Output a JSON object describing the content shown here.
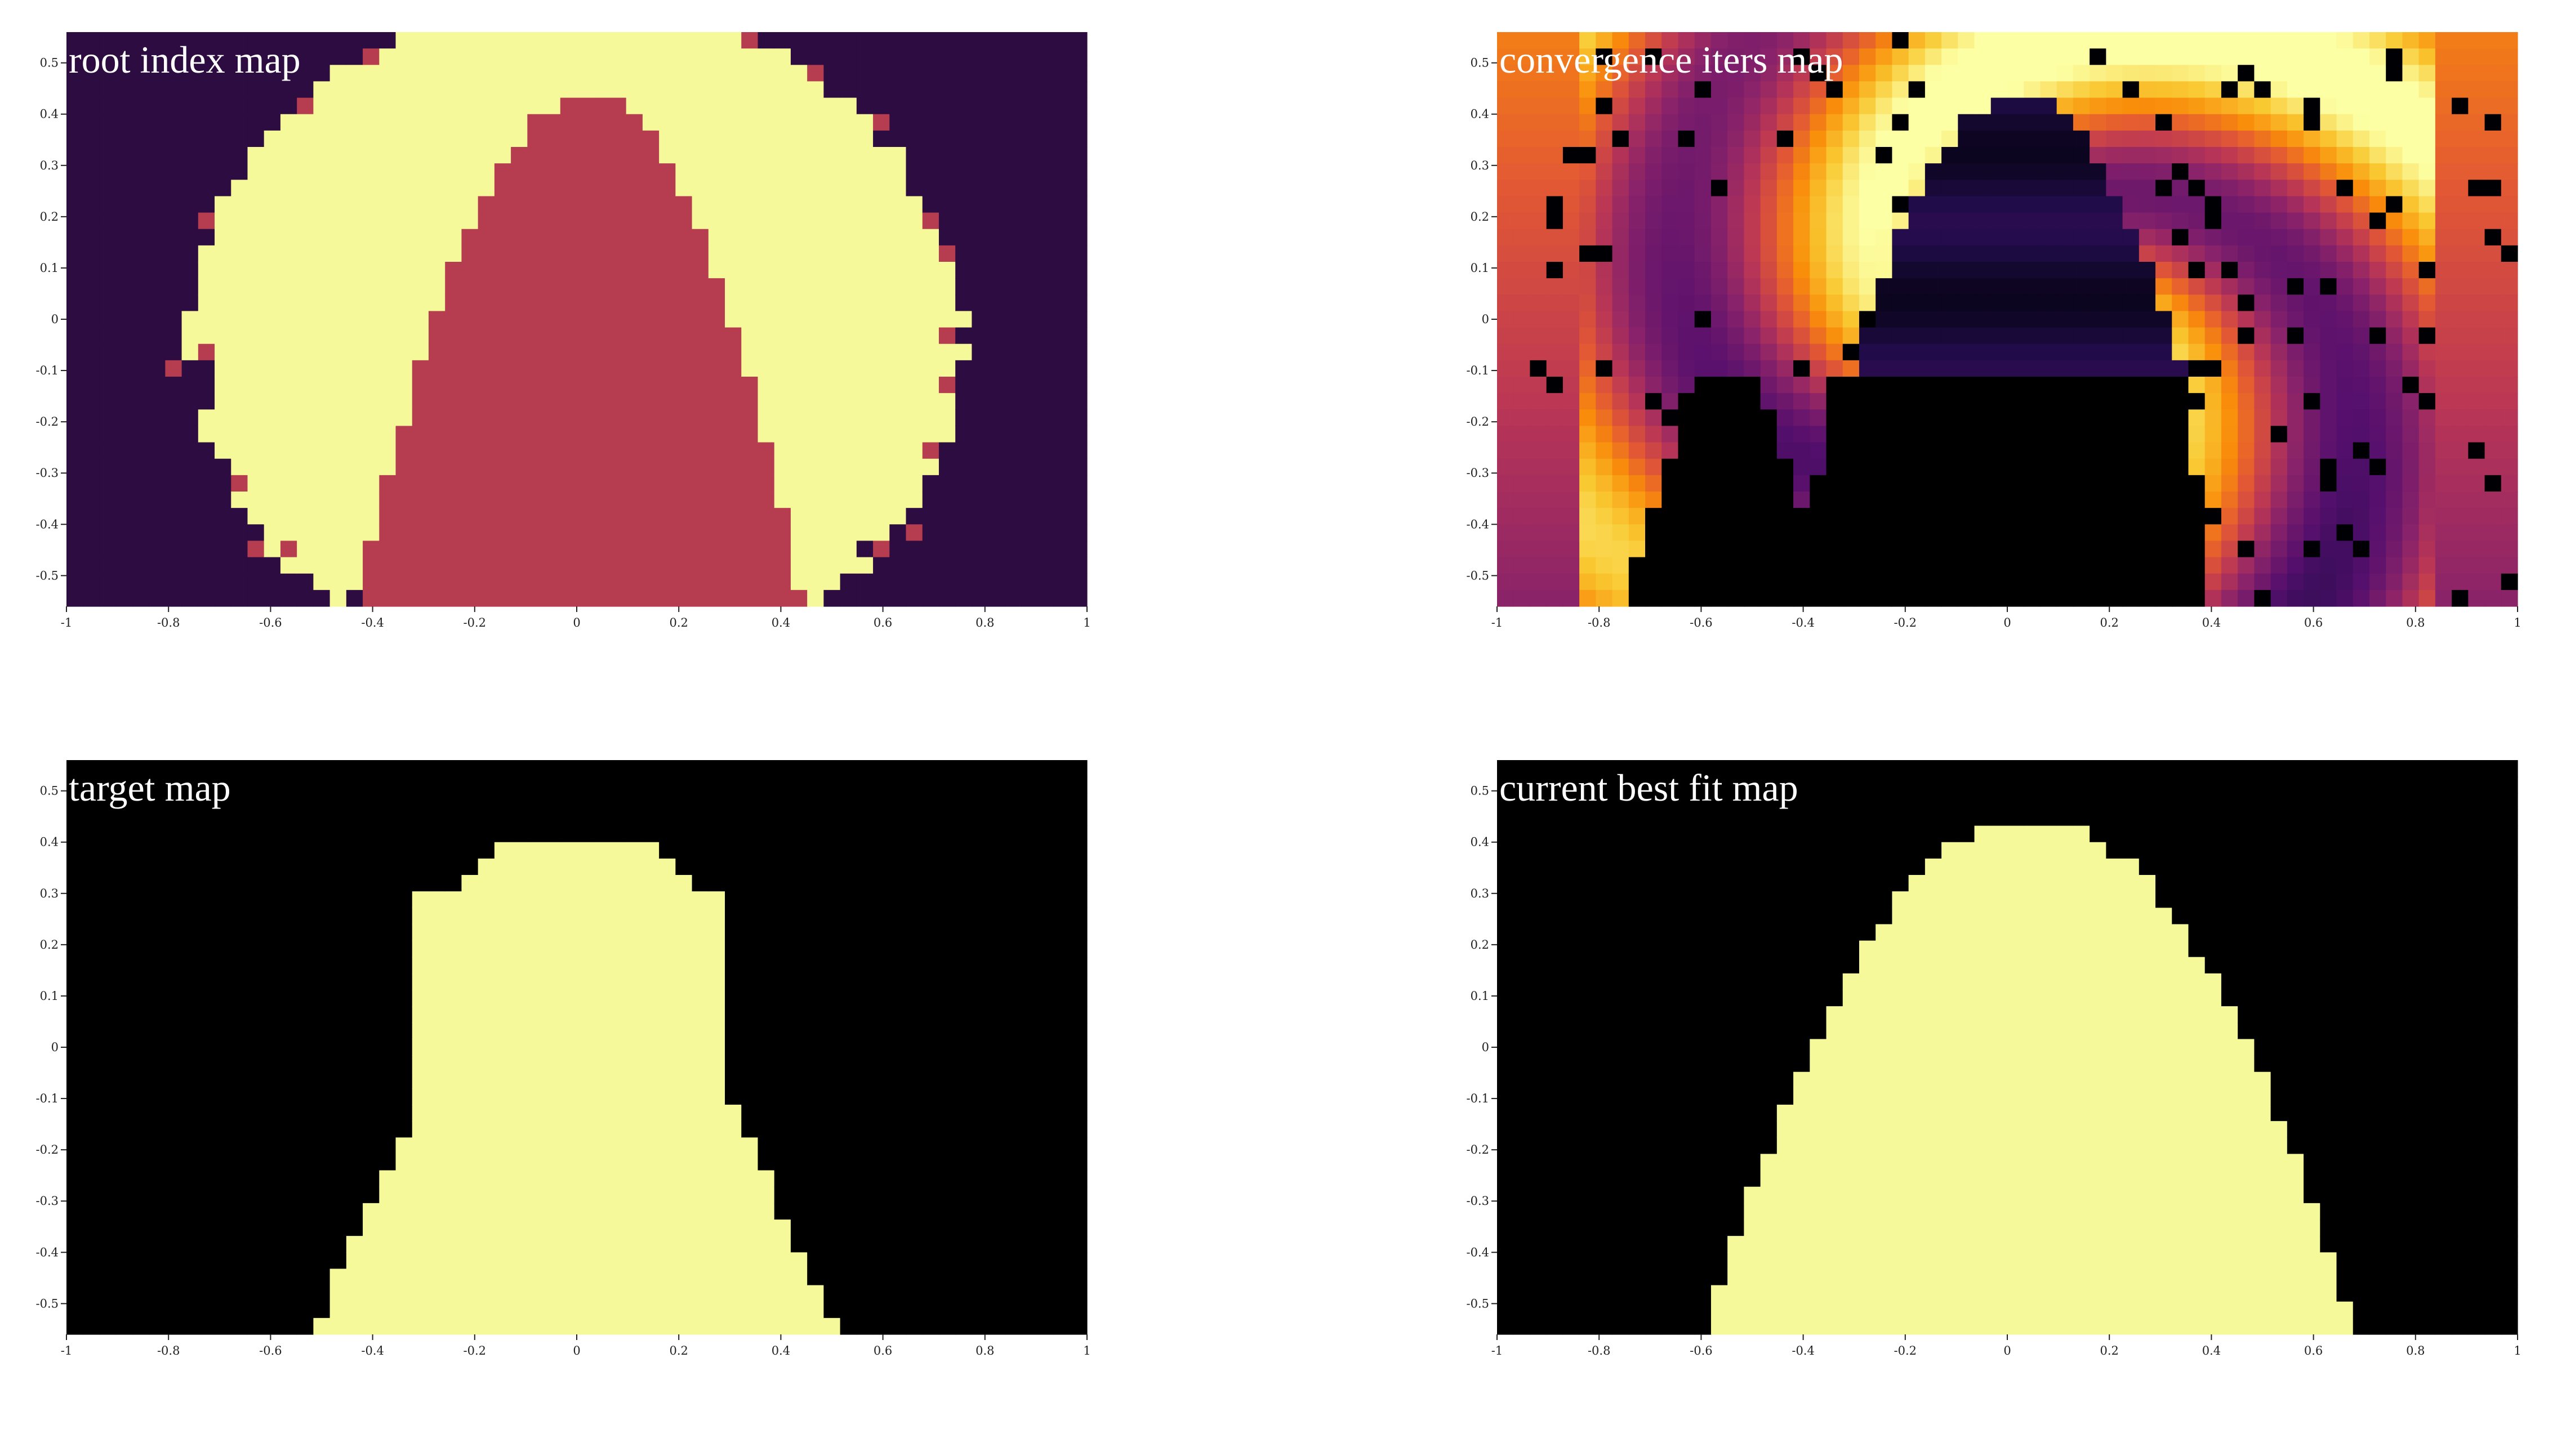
{
  "chart_data": [
    {
      "type": "heatmap",
      "title": "root index map",
      "xlim": [
        -1,
        1
      ],
      "ylim": [
        -0.56,
        0.56
      ],
      "x_ticks": [
        "-1",
        "-0.8",
        "-0.6",
        "-0.4",
        "-0.2",
        "0",
        "0.2",
        "0.4",
        "0.6",
        "0.8",
        "1"
      ],
      "y_ticks": [
        "-0.5",
        "-0.4",
        "-0.3",
        "-0.2",
        "-0.1",
        "0",
        "0.1",
        "0.2",
        "0.3",
        "0.4",
        "0.5"
      ],
      "colormap": "categorical",
      "categories": [
        {
          "value": 0,
          "color": "#2d0c41"
        },
        {
          "value": 1,
          "color": "#f6f99a"
        },
        {
          "value": 2,
          "color": "#b63d50"
        }
      ],
      "regions": [
        {
          "category": 1,
          "description": "outer ring",
          "cx": 0.0,
          "cy": -0.04,
          "rx": 0.76,
          "ry": 0.66
        },
        {
          "category": 2,
          "description": "central parabolic lobe",
          "vertex_y": 0.44,
          "half_width_at_bottom": 0.43,
          "x_center": 0.02
        }
      ]
    },
    {
      "type": "heatmap",
      "title": "convergence iters map",
      "xlim": [
        -1,
        1
      ],
      "ylim": [
        -0.56,
        0.56
      ],
      "x_ticks": [
        "-1",
        "-0.8",
        "-0.6",
        "-0.4",
        "-0.2",
        "0",
        "0.2",
        "0.4",
        "0.6",
        "0.8",
        "1"
      ],
      "y_ticks": [
        "-0.5",
        "-0.4",
        "-0.3",
        "-0.2",
        "-0.1",
        "0",
        "0.1",
        "0.2",
        "0.3",
        "0.4",
        "0.5"
      ],
      "colormap": "inferno",
      "value_range": [
        0,
        1
      ]
    },
    {
      "type": "heatmap",
      "title": "target map",
      "xlim": [
        -1,
        1
      ],
      "ylim": [
        -0.56,
        0.56
      ],
      "x_ticks": [
        "-1",
        "-0.8",
        "-0.6",
        "-0.4",
        "-0.2",
        "0",
        "0.2",
        "0.4",
        "0.6",
        "0.8",
        "1"
      ],
      "y_ticks": [
        "-0.5",
        "-0.4",
        "-0.3",
        "-0.2",
        "-0.1",
        "0",
        "0.1",
        "0.2",
        "0.3",
        "0.4",
        "0.5"
      ],
      "colormap": "binary",
      "colors": {
        "off": "#000000",
        "on": "#f6f99a"
      },
      "shape": "bell-shaped blob centered at x=0, top y=0.41, base from x=-0.52 to x=0.50"
    },
    {
      "type": "heatmap",
      "title": "current best fit map",
      "xlim": [
        -1,
        1
      ],
      "ylim": [
        -0.56,
        0.56
      ],
      "x_ticks": [
        "-1",
        "-0.8",
        "-0.6",
        "-0.4",
        "-0.2",
        "0",
        "0.2",
        "0.4",
        "0.6",
        "0.8",
        "1"
      ],
      "y_ticks": [
        "-0.5",
        "-0.4",
        "-0.3",
        "-0.2",
        "-0.1",
        "0",
        "0.1",
        "0.2",
        "0.3",
        "0.4",
        "0.5"
      ],
      "colormap": "binary",
      "colors": {
        "off": "#000000",
        "on": "#f6f99a"
      },
      "shape": "parabolic dome, top y=0.44 at x=0, base from x=-0.43 to x=0.49"
    }
  ]
}
